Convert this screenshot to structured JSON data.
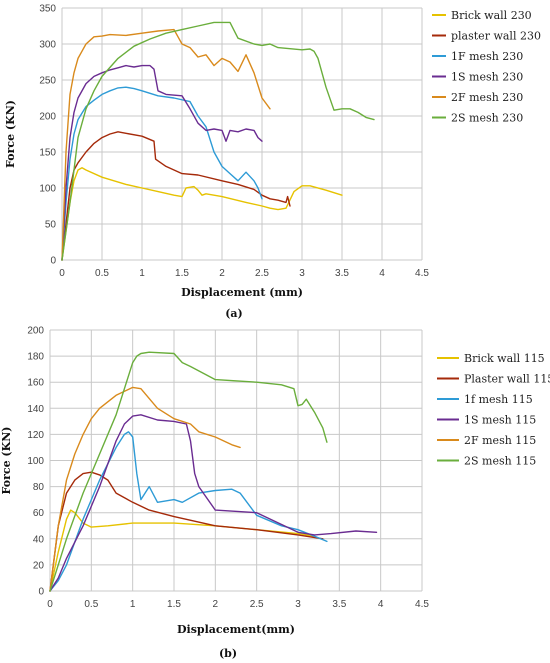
{
  "chart_data": [
    {
      "type": "line",
      "panel_label": "(a)",
      "xlabel": "Displacement (mm)",
      "ylabel": "Force (KN)",
      "xlim": [
        0,
        4.5
      ],
      "ylim": [
        0,
        350
      ],
      "xticks": [
        0,
        0.5,
        1,
        1.5,
        2,
        2.5,
        3,
        3.5,
        4,
        4.5
      ],
      "yticks": [
        0,
        50,
        100,
        150,
        200,
        250,
        300,
        350
      ],
      "grid": true,
      "legend": "right",
      "series": [
        {
          "name": "Brick wall 230",
          "color": "#E6C200",
          "x": [
            0,
            0.05,
            0.1,
            0.15,
            0.2,
            0.25,
            0.3,
            0.5,
            0.8,
            1.0,
            1.2,
            1.4,
            1.5,
            1.55,
            1.65,
            1.7,
            1.75,
            1.8,
            2.0,
            2.3,
            2.5,
            2.6,
            2.7,
            2.8,
            2.9,
            3.0,
            3.1,
            3.3,
            3.5
          ],
          "y": [
            0,
            40,
            80,
            110,
            125,
            128,
            125,
            115,
            105,
            100,
            95,
            90,
            88,
            100,
            102,
            97,
            90,
            92,
            88,
            80,
            75,
            72,
            70,
            72,
            95,
            103,
            103,
            97,
            90
          ]
        },
        {
          "name": "plaster wall 230",
          "color": "#A52A0A",
          "x": [
            0,
            0.05,
            0.1,
            0.15,
            0.2,
            0.3,
            0.4,
            0.5,
            0.6,
            0.7,
            0.8,
            1.0,
            1.15,
            1.17,
            1.3,
            1.5,
            1.7,
            2.0,
            2.2,
            2.4,
            2.5,
            2.6,
            2.7,
            2.8,
            2.82,
            2.85
          ],
          "y": [
            0,
            50,
            100,
            125,
            135,
            150,
            162,
            170,
            175,
            178,
            176,
            172,
            165,
            140,
            130,
            120,
            118,
            110,
            105,
            98,
            90,
            85,
            83,
            80,
            88,
            75
          ]
        },
        {
          "name": "1F mesh 230",
          "color": "#2E9BD6",
          "x": [
            0,
            0.05,
            0.1,
            0.15,
            0.2,
            0.3,
            0.4,
            0.5,
            0.6,
            0.7,
            0.8,
            0.9,
            1.0,
            1.2,
            1.4,
            1.6,
            1.7,
            1.8,
            1.9,
            2.0,
            2.1,
            2.2,
            2.3,
            2.4,
            2.45,
            2.5
          ],
          "y": [
            0,
            80,
            140,
            175,
            195,
            213,
            222,
            230,
            235,
            239,
            240,
            238,
            235,
            228,
            225,
            220,
            200,
            185,
            150,
            130,
            120,
            110,
            122,
            110,
            100,
            85
          ]
        },
        {
          "name": "1S mesh 230",
          "color": "#6A2C91",
          "x": [
            0,
            0.05,
            0.1,
            0.15,
            0.2,
            0.3,
            0.4,
            0.5,
            0.6,
            0.7,
            0.8,
            0.9,
            1.0,
            1.1,
            1.15,
            1.2,
            1.3,
            1.5,
            1.6,
            1.7,
            1.8,
            1.9,
            2.0,
            2.05,
            2.1,
            2.2,
            2.3,
            2.4,
            2.45,
            2.5
          ],
          "y": [
            0,
            100,
            170,
            205,
            225,
            245,
            255,
            260,
            264,
            267,
            270,
            268,
            270,
            270,
            265,
            235,
            230,
            228,
            210,
            190,
            180,
            182,
            180,
            165,
            180,
            178,
            182,
            180,
            170,
            165
          ]
        },
        {
          "name": "2F mesh 230",
          "color": "#D98A1C",
          "x": [
            0,
            0.05,
            0.1,
            0.15,
            0.2,
            0.25,
            0.3,
            0.4,
            0.5,
            0.6,
            0.8,
            1.0,
            1.2,
            1.4,
            1.45,
            1.5,
            1.6,
            1.7,
            1.8,
            1.9,
            2.0,
            2.1,
            2.2,
            2.3,
            2.4,
            2.5,
            2.6
          ],
          "y": [
            0,
            150,
            230,
            260,
            280,
            290,
            300,
            310,
            311,
            313,
            312,
            315,
            318,
            320,
            310,
            300,
            295,
            282,
            285,
            270,
            280,
            275,
            262,
            285,
            260,
            225,
            210
          ]
        },
        {
          "name": "2S mesh 230",
          "color": "#6AAE3C",
          "x": [
            0,
            0.1,
            0.2,
            0.3,
            0.4,
            0.5,
            0.7,
            0.9,
            1.1,
            1.3,
            1.5,
            1.7,
            1.9,
            2.1,
            2.2,
            2.4,
            2.5,
            2.6,
            2.7,
            3.0,
            3.1,
            3.15,
            3.2,
            3.3,
            3.4,
            3.5,
            3.6,
            3.7,
            3.8,
            3.9
          ],
          "y": [
            0,
            80,
            170,
            210,
            235,
            255,
            280,
            297,
            307,
            315,
            320,
            325,
            330,
            330,
            308,
            300,
            298,
            300,
            295,
            292,
            293,
            290,
            280,
            240,
            208,
            210,
            210,
            205,
            198,
            195
          ]
        }
      ]
    },
    {
      "type": "line",
      "panel_label": "(b)",
      "xlabel": "Displacement(mm)",
      "ylabel": "Force (KN)",
      "xlim": [
        0,
        4.5
      ],
      "ylim": [
        0,
        200
      ],
      "xticks": [
        0,
        0.5,
        1,
        1.5,
        2,
        2.5,
        3,
        3.5,
        4,
        4.5
      ],
      "yticks": [
        0,
        20,
        40,
        60,
        80,
        100,
        120,
        140,
        160,
        180,
        200
      ],
      "grid": true,
      "legend": "right",
      "series": [
        {
          "name": "Brick wall 115",
          "color": "#E6C200",
          "x": [
            0,
            0.1,
            0.2,
            0.25,
            0.3,
            0.4,
            0.5,
            0.7,
            1.0,
            1.5,
            2.0,
            2.5,
            3.0,
            3.2
          ],
          "y": [
            0,
            30,
            55,
            62,
            60,
            52,
            49,
            50,
            52,
            52,
            50,
            47,
            44,
            42
          ]
        },
        {
          "name": "Plaster wall 115",
          "color": "#A52A0A",
          "x": [
            0,
            0.1,
            0.2,
            0.3,
            0.4,
            0.5,
            0.6,
            0.7,
            0.8,
            1.0,
            1.2,
            1.5,
            2.0,
            2.5,
            3.0,
            3.3
          ],
          "y": [
            0,
            50,
            75,
            85,
            90,
            91,
            89,
            85,
            75,
            68,
            62,
            57,
            50,
            47,
            43,
            40
          ]
        },
        {
          "name": "1f mesh 115",
          "color": "#2E9BD6",
          "x": [
            0,
            0.1,
            0.2,
            0.4,
            0.6,
            0.8,
            0.9,
            0.95,
            1.0,
            1.05,
            1.1,
            1.2,
            1.3,
            1.5,
            1.6,
            1.8,
            2.0,
            2.2,
            2.3,
            2.5,
            2.8,
            3.0,
            3.2,
            3.35
          ],
          "y": [
            0,
            8,
            20,
            55,
            85,
            110,
            120,
            122,
            118,
            90,
            70,
            80,
            68,
            70,
            68,
            75,
            77,
            78,
            75,
            58,
            50,
            47,
            42,
            38
          ]
        },
        {
          "name": "1S mesh 115",
          "color": "#6A2C91",
          "x": [
            0,
            0.1,
            0.2,
            0.4,
            0.6,
            0.8,
            0.9,
            1.0,
            1.1,
            1.3,
            1.5,
            1.65,
            1.7,
            1.75,
            1.8,
            2.0,
            2.5,
            3.0,
            3.2,
            3.4,
            3.7,
            3.95
          ],
          "y": [
            0,
            10,
            25,
            50,
            80,
            115,
            128,
            134,
            135,
            131,
            130,
            128,
            115,
            90,
            80,
            62,
            60,
            45,
            43,
            44,
            46,
            45
          ]
        },
        {
          "name": "2F mesh 115",
          "color": "#D98A1C",
          "x": [
            0,
            0.1,
            0.2,
            0.3,
            0.4,
            0.5,
            0.6,
            0.8,
            1.0,
            1.1,
            1.3,
            1.5,
            1.7,
            1.8,
            2.0,
            2.2,
            2.3
          ],
          "y": [
            0,
            50,
            85,
            105,
            120,
            132,
            140,
            150,
            156,
            155,
            140,
            132,
            128,
            122,
            118,
            112,
            110
          ]
        },
        {
          "name": "2S mesh 115",
          "color": "#6AAE3C",
          "x": [
            0,
            0.2,
            0.4,
            0.6,
            0.8,
            0.9,
            1.0,
            1.05,
            1.1,
            1.2,
            1.5,
            1.6,
            1.7,
            2.0,
            2.5,
            2.8,
            2.95,
            3.0,
            3.05,
            3.1,
            3.2,
            3.3,
            3.35
          ],
          "y": [
            0,
            40,
            75,
            105,
            135,
            155,
            175,
            180,
            182,
            183,
            182,
            175,
            172,
            162,
            160,
            158,
            155,
            142,
            143,
            147,
            137,
            125,
            114
          ]
        }
      ]
    }
  ]
}
